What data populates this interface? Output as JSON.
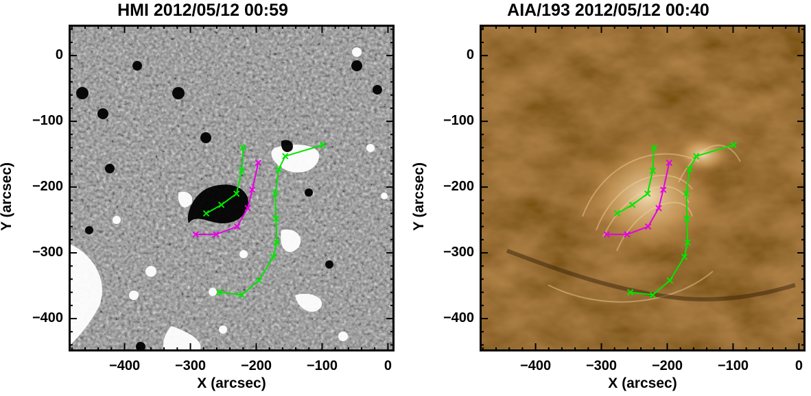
{
  "panels": [
    {
      "title": "HMI 2012/05/12 00:59",
      "image": "hmi-magnetogram",
      "background_color": "#8a8a8a",
      "xlabel": "X (arcsec)",
      "ylabel": "Y (arcsec)"
    },
    {
      "title": "AIA/193 2012/05/12 00:40",
      "image": "aia-193-euv",
      "background_color": "#6b4314",
      "xlabel": "X (arcsec)",
      "ylabel": "Y (arcsec)"
    }
  ],
  "axes": {
    "xlim": [
      -485,
      10
    ],
    "ylim": [
      -450,
      47
    ],
    "xticks": [
      -400,
      -300,
      -200,
      -100,
      0
    ],
    "xtick_labels": [
      "−400",
      "−300",
      "−200",
      "−100",
      "0"
    ],
    "yticks": [
      0,
      -100,
      -200,
      -300,
      -400
    ],
    "ytick_labels": [
      "0",
      "−100",
      "−200",
      "−300",
      "−400"
    ]
  },
  "overlays": [
    {
      "color": "#00e600",
      "marker": "x",
      "points": [
        [
          -276,
          -240
        ],
        [
          -253,
          -227
        ],
        [
          -230,
          -210
        ],
        [
          -222,
          -175
        ],
        [
          -220,
          -140
        ]
      ]
    },
    {
      "color": "#e600e6",
      "marker": "x",
      "points": [
        [
          -292,
          -272
        ],
        [
          -261,
          -272
        ],
        [
          -229,
          -260
        ],
        [
          -213,
          -232
        ],
        [
          -206,
          -204
        ],
        [
          -197,
          -163
        ]
      ]
    },
    {
      "color": "#00e600",
      "marker": "x",
      "points": [
        [
          -256,
          -360
        ],
        [
          -222,
          -364
        ],
        [
          -196,
          -342
        ],
        [
          -174,
          -306
        ],
        [
          -169,
          -284
        ],
        [
          -170,
          -248
        ],
        [
          -171,
          -210
        ],
        [
          -166,
          -173
        ],
        [
          -156,
          -153
        ],
        [
          -99,
          -136
        ]
      ]
    }
  ]
}
